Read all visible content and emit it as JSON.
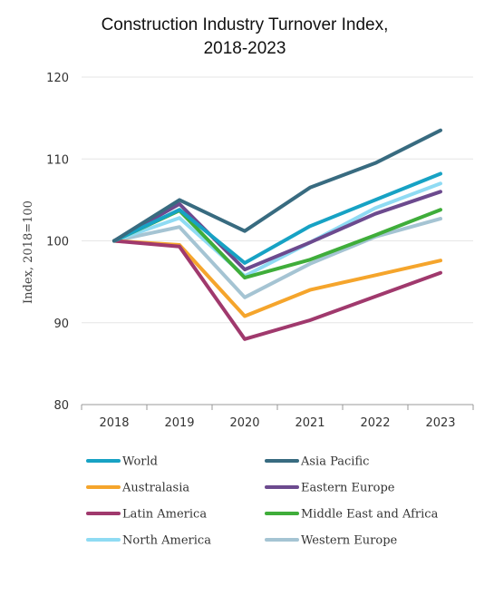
{
  "chart_data": {
    "type": "line",
    "title_line1": "Construction Industry Turnover Index,",
    "title_line2": "2018-2023",
    "xlabel": "",
    "ylabel": "Index, 2018=100",
    "x": [
      "2018",
      "2019",
      "2020",
      "2021",
      "2022",
      "2023"
    ],
    "ylim": [
      80,
      120
    ],
    "yticks": [
      80,
      90,
      100,
      110,
      120
    ],
    "grid": true,
    "legend_position": "bottom",
    "series": [
      {
        "name": "World",
        "color": "#17a2c4",
        "values": [
          100,
          103.8,
          97.3,
          101.8,
          105.0,
          108.2
        ]
      },
      {
        "name": "Asia Pacific",
        "color": "#386b80",
        "values": [
          100,
          105.0,
          101.2,
          106.5,
          109.5,
          113.5
        ]
      },
      {
        "name": "Australasia",
        "color": "#f5a52c",
        "values": [
          100,
          99.5,
          90.8,
          94.0,
          95.8,
          97.6
        ]
      },
      {
        "name": "Eastern Europe",
        "color": "#6c4a8e",
        "values": [
          100,
          104.5,
          96.5,
          99.8,
          103.3,
          106.0
        ]
      },
      {
        "name": "Latin America",
        "color": "#a0396d",
        "values": [
          100,
          99.3,
          88.0,
          90.3,
          93.2,
          96.1
        ]
      },
      {
        "name": "Middle East and Africa",
        "color": "#3fad3a",
        "values": [
          100,
          103.7,
          95.5,
          97.7,
          100.7,
          103.8
        ]
      },
      {
        "name": "North America",
        "color": "#8fdbf3",
        "values": [
          100,
          102.8,
          95.7,
          99.8,
          104.0,
          107.0
        ]
      },
      {
        "name": "Western Europe",
        "color": "#a5c4d3",
        "values": [
          100,
          101.7,
          93.1,
          97.2,
          100.5,
          102.7
        ]
      }
    ]
  }
}
